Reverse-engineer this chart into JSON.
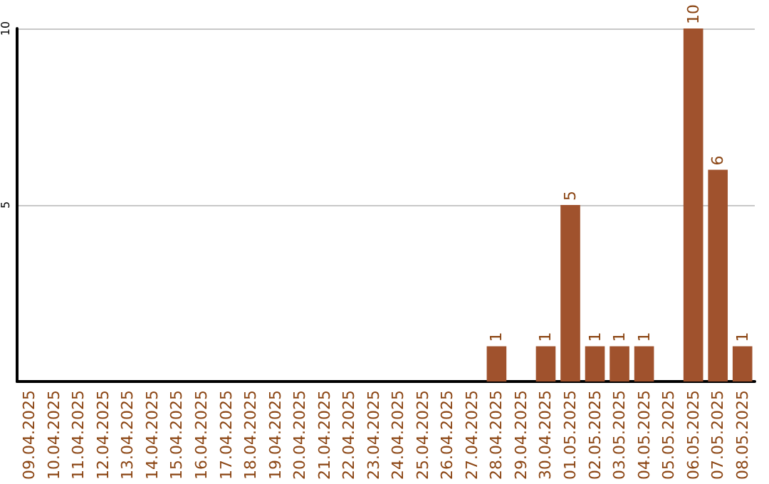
{
  "chart_data": {
    "type": "bar",
    "categories": [
      "09.04.2025",
      "10.04.2025",
      "11.04.2025",
      "12.04.2025",
      "13.04.2025",
      "14.04.2025",
      "15.04.2025",
      "16.04.2025",
      "17.04.2025",
      "18.04.2025",
      "19.04.2025",
      "20.04.2025",
      "21.04.2025",
      "22.04.2025",
      "23.04.2025",
      "24.04.2025",
      "25.04.2025",
      "26.04.2025",
      "27.04.2025",
      "28.04.2025",
      "29.04.2025",
      "30.04.2025",
      "01.05.2025",
      "02.05.2025",
      "03.05.2025",
      "04.05.2025",
      "05.05.2025",
      "06.05.2025",
      "07.05.2025",
      "08.05.2025"
    ],
    "values": [
      0,
      0,
      0,
      0,
      0,
      0,
      0,
      0,
      0,
      0,
      0,
      0,
      0,
      0,
      0,
      0,
      0,
      0,
      0,
      1,
      0,
      1,
      5,
      1,
      1,
      1,
      0,
      10,
      6,
      1
    ],
    "value_labels": [
      null,
      null,
      null,
      null,
      null,
      null,
      null,
      null,
      null,
      null,
      null,
      null,
      null,
      null,
      null,
      null,
      null,
      null,
      null,
      "1",
      null,
      "1",
      "5",
      "1",
      "1",
      "1",
      null,
      "10",
      "6",
      "1"
    ],
    "color": "#a0522d",
    "ylim": [
      0,
      10
    ],
    "yticks": [
      5,
      10
    ],
    "grid": "y"
  }
}
